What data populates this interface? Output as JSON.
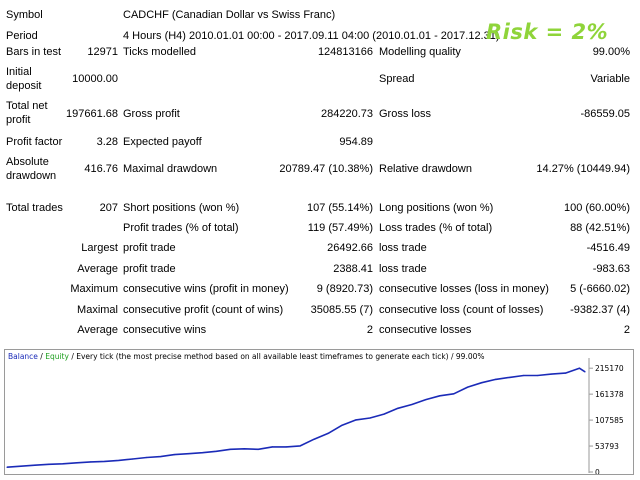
{
  "header": {
    "symbol_label": "Symbol",
    "symbol_value": "CADCHF (Canadian Dollar vs Swiss Franc)",
    "period_label": "Period",
    "period_value": "4 Hours (H4) 2010.01.01 00:00 - 2017.09.11 04:00 (2010.01.01 - 2017.12.31)",
    "risk_badge": "Risk = 2%"
  },
  "stats": {
    "bars_label": "Bars in test",
    "bars_value": "12971",
    "ticks_label": "Ticks modelled",
    "ticks_value": "124813166",
    "quality_label": "Modelling quality",
    "quality_value": "99.00%",
    "deposit_label_1": "Initial",
    "deposit_label_2": "deposit",
    "deposit_value": "10000.00",
    "spread_label": "Spread",
    "spread_value": "Variable",
    "netprofit_label_1": "Total net",
    "netprofit_label_2": "profit",
    "netprofit_value": "197661.68",
    "grossprofit_label": "Gross profit",
    "grossprofit_value": "284220.73",
    "grossloss_label": "Gross loss",
    "grossloss_value": "-86559.05",
    "pf_label": "Profit factor",
    "pf_value": "3.28",
    "ep_label": "Expected payoff",
    "ep_value": "954.89",
    "absdd_label_1": "Absolute",
    "absdd_label_2": "drawdown",
    "absdd_value": "416.76",
    "maxdd_label": "Maximal drawdown",
    "maxdd_value": "20789.47 (10.38%)",
    "reldd_label": "Relative drawdown",
    "reldd_value": "14.27% (10449.94)"
  },
  "trades": {
    "total_label": "Total trades",
    "total_value": "207",
    "short_label": "Short positions (won %)",
    "short_value": "107 (55.14%)",
    "long_label": "Long positions (won %)",
    "long_value": "100 (60.00%)",
    "profit_trades_label": "Profit trades (% of total)",
    "profit_trades_value": "119 (57.49%)",
    "loss_trades_label": "Loss trades (% of total)",
    "loss_trades_value": "88 (42.51%)",
    "largest_label": "Largest",
    "largest_profit_label": "profit trade",
    "largest_profit_value": "26492.66",
    "largest_loss_label": "loss trade",
    "largest_loss_value": "-4516.49",
    "average_label": "Average",
    "average_profit_label": "profit trade",
    "average_profit_value": "2388.41",
    "average_loss_label": "loss trade",
    "average_loss_value": "-983.63",
    "maxcw_label": "Maximum",
    "maxcw_desc": "consecutive wins (profit in money)",
    "maxcw_value": "9 (8920.73)",
    "maxcl_desc": "consecutive losses (loss in money)",
    "maxcl_value": "5 (-6660.02)",
    "maximal_label": "Maximal",
    "maxcp_desc": "consecutive profit (count of wins)",
    "maxcp_value": "35085.55 (7)",
    "maxcloss_desc": "consecutive loss (count of losses)",
    "maxcloss_value": "-9382.37 (4)",
    "avg_label": "Average",
    "avgcw_desc": "consecutive wins",
    "avgcw_value": "2",
    "avgcl_desc": "consecutive losses",
    "avgcl_value": "2"
  },
  "chart_caption": {
    "balance": "Balance",
    "sep": " / ",
    "equity": "Equity",
    "rest": " / Every tick (the most precise method based on all available least timeframes to generate each tick) / 99.00%"
  },
  "chart_data": {
    "type": "line",
    "series": [
      {
        "name": "Balance",
        "color": "#1b2bb8"
      }
    ],
    "y_ticks": [
      "215170",
      "161378",
      "107585",
      "53793",
      "0"
    ],
    "y_tick_values": [
      215170,
      161378,
      107585,
      53793,
      0
    ],
    "ylim": [
      0,
      228000
    ],
    "x": [
      0,
      5,
      10,
      15,
      20,
      25,
      30,
      35,
      40,
      45,
      50,
      55,
      60,
      65,
      70,
      75,
      80,
      85,
      90,
      95,
      100,
      105,
      110,
      115,
      120,
      125,
      130,
      135,
      140,
      145,
      150,
      155,
      160,
      165,
      170,
      175,
      180,
      185,
      190,
      195,
      200,
      205,
      207
    ],
    "values": [
      10000,
      12000,
      14000,
      16000,
      17000,
      19000,
      21000,
      22000,
      24000,
      27000,
      30000,
      32000,
      36000,
      38000,
      40000,
      43000,
      47000,
      48000,
      47000,
      52000,
      52000,
      54000,
      68000,
      80000,
      97000,
      108000,
      112000,
      120000,
      132000,
      140000,
      150000,
      158000,
      162000,
      176000,
      185000,
      192000,
      196000,
      200000,
      200000,
      203000,
      205000,
      215170,
      207661
    ],
    "legend": "top-left",
    "grid": false
  },
  "colors": {
    "risk": "#8fd43a",
    "balance": "#1b2bb8",
    "equity": "#1fa01f"
  }
}
